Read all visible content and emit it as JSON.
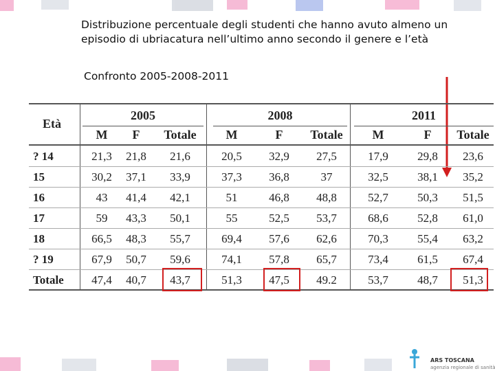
{
  "header": {
    "title": "Distribuzione percentuale degli studenti che hanno avuto almeno un episodio di ubriacatura nell’ultimo anno secondo il genere e l’età",
    "subtitle": "Confronto 2005-2008-2011"
  },
  "table": {
    "corner": "Età",
    "years": [
      "2005",
      "2008",
      "2011"
    ],
    "columns": [
      "M",
      "F",
      "Totale",
      "M",
      "F",
      "Totale",
      "M",
      "F",
      "Totale"
    ],
    "rows": [
      {
        "label": "? 14",
        "cells": [
          "21,3",
          "21,8",
          "21,6",
          "20,5",
          "32,9",
          "27,5",
          "17,9",
          "29,8",
          "23,6"
        ]
      },
      {
        "label": "15",
        "cells": [
          "30,2",
          "37,1",
          "33,9",
          "37,3",
          "36,8",
          "37",
          "32,5",
          "38,1",
          "35,2"
        ]
      },
      {
        "label": "16",
        "cells": [
          "43",
          "41,4",
          "42,1",
          "51",
          "46,8",
          "48,8",
          "52,7",
          "50,3",
          "51,5"
        ]
      },
      {
        "label": "17",
        "cells": [
          "59",
          "43,3",
          "50,1",
          "55",
          "52,5",
          "53,7",
          "68,6",
          "52,8",
          "61,0"
        ]
      },
      {
        "label": "18",
        "cells": [
          "66,5",
          "48,3",
          "55,7",
          "69,4",
          "57,6",
          "62,6",
          "70,3",
          "55,4",
          "63,2"
        ]
      },
      {
        "label": "? 19",
        "cells": [
          "67,9",
          "50,7",
          "59,6",
          "74,1",
          "57,8",
          "65,7",
          "73,4",
          "61,5",
          "67,4"
        ]
      },
      {
        "label": "Totale",
        "cells": [
          "47,4",
          "40,7",
          "43,7",
          "51,3",
          "47,5",
          "49.2",
          "53,7",
          "48,7",
          "51,3"
        ]
      }
    ]
  },
  "logo": {
    "name": "ARS TOSCANA",
    "tagline": "agenzia regionale di sanità"
  }
}
